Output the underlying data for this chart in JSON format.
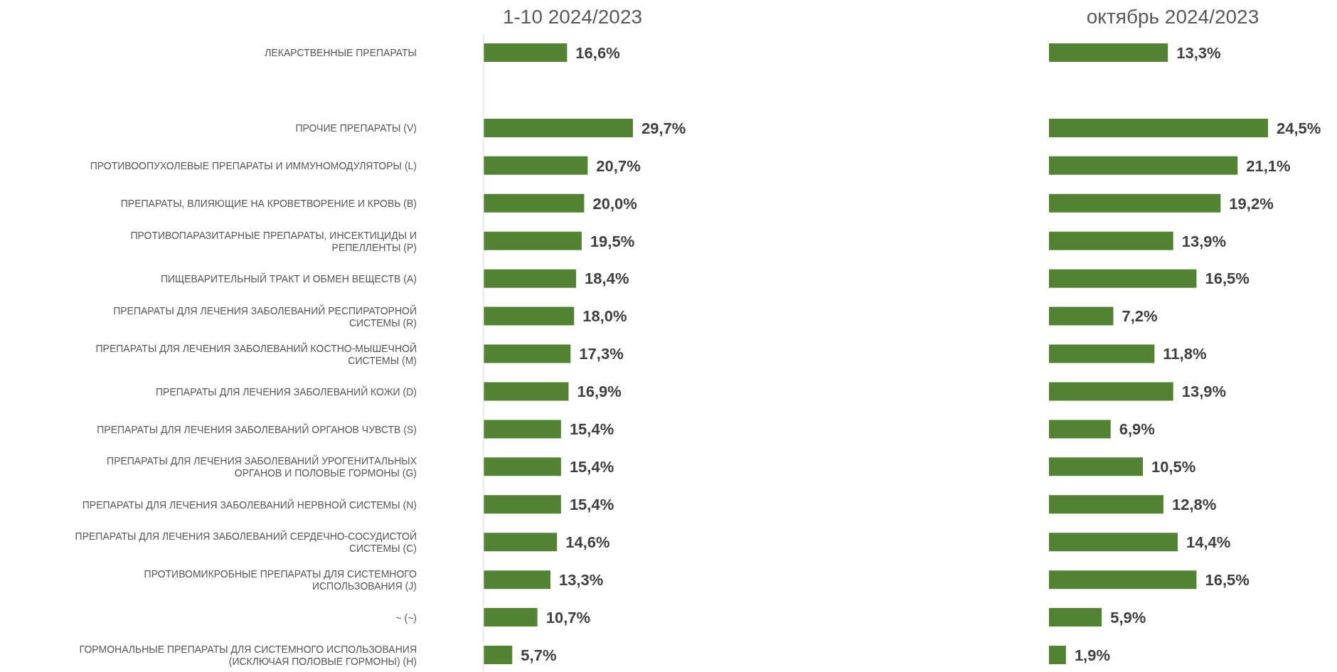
{
  "chart_data": [
    {
      "type": "bar",
      "orientation": "horizontal",
      "title": "1-10 2024/2023",
      "tick_labels": "y",
      "categories": [
        "ЛЕКАРСТВЕННЫЕ ПРЕПАРАТЫ",
        null,
        "ПРОЧИЕ ПРЕПАРАТЫ (V)",
        "ПРОТИВООПУХОЛЕВЫЕ ПРЕПАРАТЫ И ИММУНОМОДУЛЯТОРЫ (L)",
        "ПРЕПАРАТЫ, ВЛИЯЮЩИЕ НА КРОВЕТВОРЕНИЕ И КРОВЬ (B)",
        "ПРОТИВОПАРАЗИТАРНЫЕ ПРЕПАРАТЫ, ИНСЕКТИЦИДЫ И РЕПЕЛЛЕНТЫ (P)",
        "ПИЩЕВАРИТЕЛЬНЫЙ ТРАКТ И ОБМЕН ВЕЩЕСТВ (A)",
        "ПРЕПАРАТЫ ДЛЯ ЛЕЧЕНИЯ ЗАБОЛЕВАНИЙ РЕСПИРАТОРНОЙ СИСТЕМЫ (R)",
        "ПРЕПАРАТЫ ДЛЯ ЛЕЧЕНИЯ ЗАБОЛЕВАНИЙ КОСТНО-МЫШЕЧНОЙ СИСТЕМЫ (M)",
        "ПРЕПАРАТЫ ДЛЯ ЛЕЧЕНИЯ ЗАБОЛЕВАНИЙ КОЖИ (D)",
        "ПРЕПАРАТЫ ДЛЯ ЛЕЧЕНИЯ ЗАБОЛЕВАНИЙ ОРГАНОВ ЧУВСТВ (S)",
        "ПРЕПАРАТЫ ДЛЯ ЛЕЧЕНИЯ ЗАБОЛЕВАНИЙ УРОГЕНИТАЛЬНЫХ ОРГАНОВ И ПОЛОВЫЕ ГОРМОНЫ (G)",
        "ПРЕПАРАТЫ ДЛЯ ЛЕЧЕНИЯ ЗАБОЛЕВАНИЙ НЕРВНОЙ СИСТЕМЫ (N)",
        "ПРЕПАРАТЫ ДЛЯ ЛЕЧЕНИЯ ЗАБОЛЕВАНИЙ СЕРДЕЧНО-СОСУДИСТОЙ СИСТЕМЫ (C)",
        "ПРОТИВОМИКРОБНЫЕ ПРЕПАРАТЫ ДЛЯ СИСТЕМНОГО ИСПОЛЬЗОВАНИЯ (J)",
        "~ (~)",
        "ГОРМОНАЛЬНЫЕ ПРЕПАРАТЫ ДЛЯ СИСТЕМНОГО ИСПОЛЬЗОВАНИЯ (ИСКЛЮЧАЯ ПОЛОВЫЕ ГОРМОНЫ) (H)"
      ],
      "values": [
        16.6,
        null,
        29.7,
        20.7,
        20.0,
        19.5,
        18.4,
        18.0,
        17.3,
        16.9,
        15.4,
        15.4,
        15.4,
        14.6,
        13.3,
        10.7,
        5.7
      ],
      "value_labels": [
        "16,6%",
        null,
        "29,7%",
        "20,7%",
        "20,0%",
        "19,5%",
        "18,4%",
        "18,0%",
        "17,3%",
        "16,9%",
        "15,4%",
        "15,4%",
        "15,4%",
        "14,6%",
        "13,3%",
        "10,7%",
        "5,7%"
      ],
      "color": "#548235"
    },
    {
      "type": "bar",
      "orientation": "horizontal",
      "title": "октябрь 2024/2023",
      "tick_labels": false,
      "categories": [
        null,
        null,
        null,
        null,
        null,
        null,
        null,
        null,
        null,
        null,
        null,
        null,
        null,
        null,
        null,
        null,
        null
      ],
      "values": [
        13.3,
        null,
        24.5,
        21.1,
        19.2,
        13.9,
        16.5,
        7.2,
        11.8,
        13.9,
        6.9,
        10.5,
        12.8,
        14.4,
        16.5,
        5.9,
        1.9
      ],
      "value_labels": [
        "13,3%",
        null,
        "24,5%",
        "21,1%",
        "19,2%",
        "13,9%",
        "16,5%",
        "7,2%",
        "11,8%",
        "13,9%",
        "6,9%",
        "10,5%",
        "12,8%",
        "14,4%",
        "16,5%",
        "5,9%",
        "1,9%"
      ],
      "color": "#548235"
    }
  ]
}
